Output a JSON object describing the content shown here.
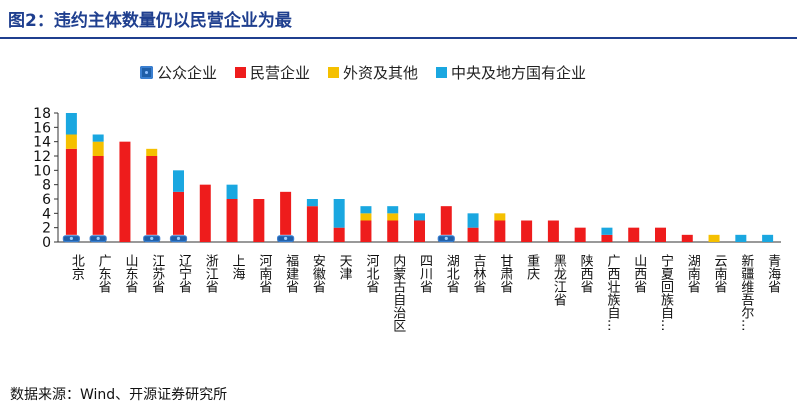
{
  "header": {
    "title": "图2：违约主体数量仍以民营企业为最"
  },
  "source": "数据来源：Wind、开源证券研究所",
  "colors": {
    "pub": "#1f5fa8",
    "priv": "#ee1c1c",
    "other": "#f5c000",
    "soe": "#1aa7e0",
    "title": "#1f3f8f"
  },
  "chart_data": {
    "type": "bar",
    "stacked": true,
    "ylim": [
      0,
      18
    ],
    "yticks": [
      0,
      2,
      4,
      6,
      8,
      10,
      12,
      14,
      16,
      18
    ],
    "grid": false,
    "legend_position": "top",
    "categories": [
      "北京",
      "广东省",
      "山东省",
      "江苏省",
      "辽宁省",
      "浙江省",
      "上海",
      "河南省",
      "福建省",
      "安徽省",
      "天津",
      "河北省",
      "内蒙古自治区",
      "四川省",
      "湖北省",
      "吉林省",
      "甘肃省",
      "重庆",
      "黑龙江省",
      "陕西省",
      "广西壮族自...",
      "山西省",
      "宁夏回族自...",
      "湖南省",
      "云南省",
      "新疆维吾尔...",
      "青海省"
    ],
    "series": [
      {
        "name": "公众企业",
        "key": "pub",
        "values": [
          1,
          1,
          0,
          1,
          1,
          0,
          0,
          0,
          1,
          0,
          0,
          0,
          0,
          0,
          1,
          0,
          0,
          0,
          0,
          0,
          0,
          0,
          0,
          0,
          0,
          0,
          0
        ]
      },
      {
        "name": "民营企业",
        "key": "priv",
        "values": [
          12,
          11,
          14,
          11,
          6,
          8,
          6,
          6,
          6,
          5,
          2,
          3,
          3,
          3,
          4,
          2,
          3,
          3,
          3,
          2,
          1,
          2,
          2,
          1,
          0,
          0,
          0
        ]
      },
      {
        "name": "外资及其他",
        "key": "other",
        "values": [
          2,
          2,
          0,
          1,
          0,
          0,
          0,
          0,
          0,
          0,
          0,
          1,
          1,
          0,
          0,
          0,
          1,
          0,
          0,
          0,
          0,
          0,
          0,
          0,
          1,
          0,
          0
        ]
      },
      {
        "name": "中央及地方国有企业",
        "key": "soe",
        "values": [
          3,
          1,
          0,
          0,
          3,
          0,
          2,
          0,
          0,
          1,
          4,
          1,
          1,
          1,
          0,
          2,
          0,
          0,
          0,
          0,
          1,
          0,
          0,
          0,
          0,
          1,
          1
        ]
      }
    ]
  }
}
